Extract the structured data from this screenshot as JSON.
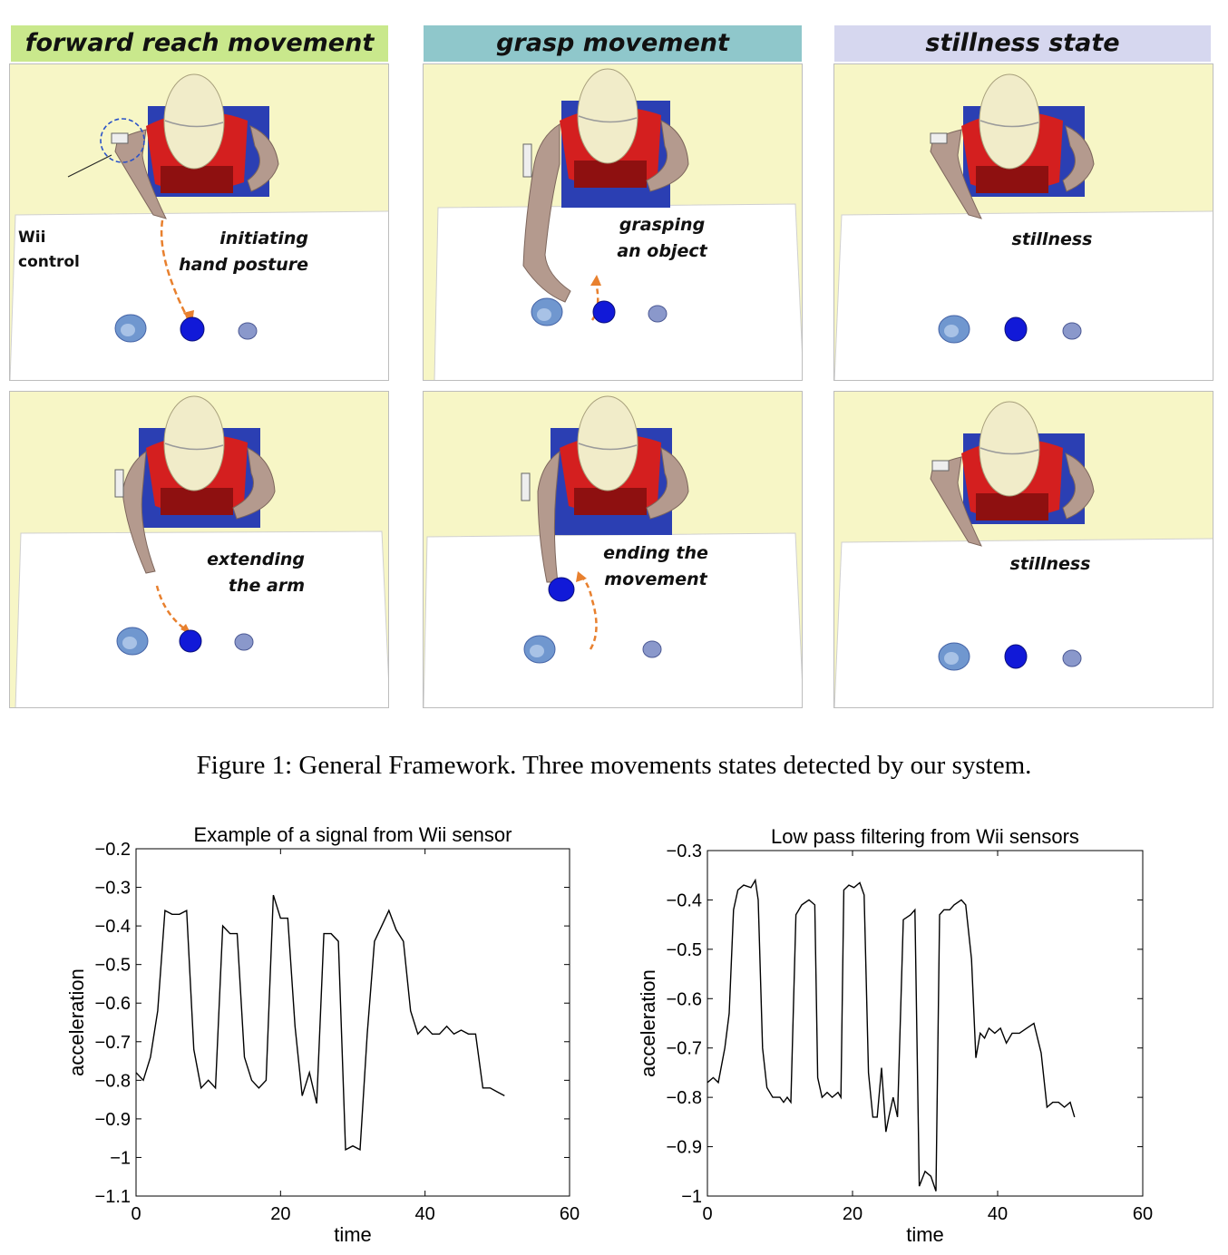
{
  "columns": [
    {
      "title": "forward reach movement",
      "color": "#c9e88c"
    },
    {
      "title": "grasp movement",
      "color": "#8fc7cb"
    },
    {
      "title": "stillness state",
      "color": "#d6d7ef"
    }
  ],
  "panels": {
    "r1c1": {
      "label_lines": [
        "initiating",
        "hand posture"
      ],
      "annotation_lines": [
        "Wii",
        "control"
      ]
    },
    "r1c2": {
      "label_lines": [
        "grasping",
        "an object"
      ]
    },
    "r1c3": {
      "label_lines": [
        "stillness"
      ]
    },
    "r2c1": {
      "label_lines": [
        "extending",
        "the arm"
      ]
    },
    "r2c2": {
      "label_lines": [
        "ending the",
        "movement"
      ]
    },
    "r2c3": {
      "label_lines": [
        "stillness"
      ]
    }
  },
  "caption": "Figure 1: General Framework. Three movements states detected by our system.",
  "chart_data": [
    {
      "type": "line",
      "title": "Example of a signal from Wii sensor",
      "xlabel": "time",
      "ylabel": "acceleration",
      "xlim": [
        0,
        60
      ],
      "ylim": [
        -1.1,
        -0.2
      ],
      "xticks": [
        "0",
        "20",
        "40",
        "60"
      ],
      "yticks": [
        "−0.2",
        "−0.3",
        "−0.4",
        "−0.5",
        "−0.6",
        "−0.7",
        "−0.8",
        "−0.9",
        "−1",
        "−1.1"
      ],
      "x": [
        0,
        1,
        2,
        3,
        4,
        5,
        6,
        7,
        8,
        9,
        10,
        11,
        12,
        13,
        14,
        15,
        16,
        17,
        18,
        19,
        20,
        21,
        22,
        23,
        24,
        25,
        26,
        27,
        28,
        29,
        30,
        31,
        32,
        33,
        34,
        35,
        36,
        37,
        38,
        39,
        40,
        41,
        42,
        43,
        44,
        45,
        46,
        47,
        48,
        49,
        50,
        51
      ],
      "y": [
        -0.78,
        -0.8,
        -0.74,
        -0.62,
        -0.36,
        -0.37,
        -0.37,
        -0.36,
        -0.72,
        -0.82,
        -0.8,
        -0.82,
        -0.4,
        -0.42,
        -0.42,
        -0.74,
        -0.8,
        -0.82,
        -0.8,
        -0.32,
        -0.38,
        -0.38,
        -0.66,
        -0.84,
        -0.78,
        -0.86,
        -0.42,
        -0.42,
        -0.44,
        -0.98,
        -0.97,
        -0.98,
        -0.68,
        -0.44,
        -0.4,
        -0.36,
        -0.41,
        -0.44,
        -0.62,
        -0.68,
        -0.66,
        -0.68,
        -0.68,
        -0.66,
        -0.68,
        -0.67,
        -0.68,
        -0.68,
        -0.82,
        -0.82,
        -0.83,
        -0.84
      ]
    },
    {
      "type": "line",
      "title": "Low pass filtering from Wii sensors",
      "xlabel": "time",
      "ylabel": "acceleration",
      "xlim": [
        0,
        60
      ],
      "ylim": [
        -1,
        -0.3
      ],
      "xticks": [
        "0",
        "20",
        "40",
        "60"
      ],
      "yticks": [
        "−0.3",
        "−0.4",
        "−0.5",
        "−0.6",
        "−0.7",
        "−0.8",
        "−0.9",
        "−1"
      ],
      "x": [
        0,
        0.8,
        1.5,
        2.4,
        3,
        3.6,
        4.2,
        5,
        6,
        6.6,
        7,
        7.6,
        8.2,
        9,
        10,
        10.5,
        11,
        11.5,
        12.2,
        13,
        14,
        14.8,
        15.2,
        15.8,
        16.5,
        17.2,
        18,
        18.4,
        18.8,
        19.5,
        20.2,
        21,
        21.6,
        22.2,
        22.8,
        23.4,
        24,
        24.6,
        25,
        25.6,
        26.2,
        27,
        28,
        28.6,
        29.2,
        30,
        30.8,
        31.5,
        32,
        32.6,
        33.4,
        34,
        35,
        35.6,
        36.4,
        37,
        37.6,
        38.2,
        38.8,
        39.6,
        40.4,
        41.2,
        42,
        43,
        44,
        45,
        46,
        46.8,
        47.6,
        48.4,
        49.2,
        50,
        50.6
      ],
      "y": [
        -0.77,
        -0.76,
        -0.77,
        -0.7,
        -0.63,
        -0.42,
        -0.38,
        -0.37,
        -0.375,
        -0.36,
        -0.4,
        -0.7,
        -0.78,
        -0.8,
        -0.8,
        -0.81,
        -0.8,
        -0.81,
        -0.43,
        -0.41,
        -0.4,
        -0.41,
        -0.76,
        -0.8,
        -0.79,
        -0.8,
        -0.79,
        -0.8,
        -0.38,
        -0.37,
        -0.375,
        -0.365,
        -0.39,
        -0.75,
        -0.84,
        -0.84,
        -0.74,
        -0.87,
        -0.84,
        -0.8,
        -0.84,
        -0.44,
        -0.43,
        -0.42,
        -0.98,
        -0.95,
        -0.96,
        -0.99,
        -0.43,
        -0.42,
        -0.42,
        -0.41,
        -0.4,
        -0.41,
        -0.52,
        -0.72,
        -0.67,
        -0.68,
        -0.66,
        -0.67,
        -0.66,
        -0.69,
        -0.67,
        -0.67,
        -0.66,
        -0.65,
        -0.71,
        -0.82,
        -0.81,
        -0.81,
        -0.82,
        -0.81,
        -0.84
      ]
    }
  ]
}
